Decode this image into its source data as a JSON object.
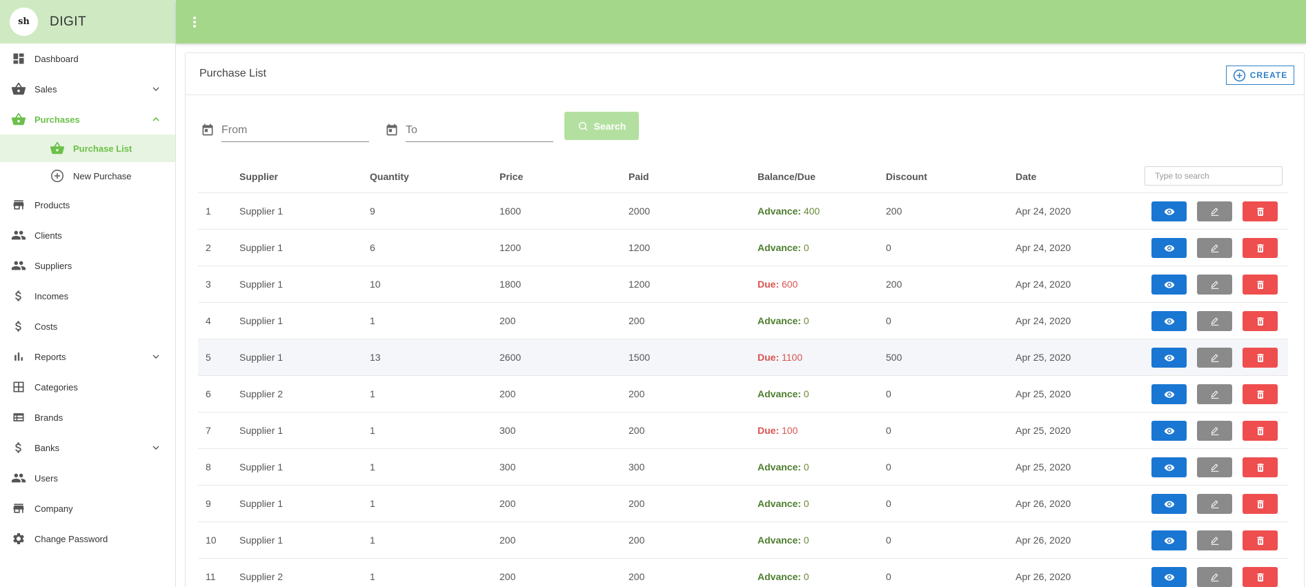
{
  "brand": {
    "logo_text": "sh",
    "name": "DIGIT"
  },
  "sidebar": {
    "items": [
      {
        "label": "Dashboard",
        "icon": "dashboard-icon"
      },
      {
        "label": "Sales",
        "icon": "basket-icon",
        "expandable": true
      },
      {
        "label": "Purchases",
        "icon": "basket-icon",
        "expandable": true,
        "active": true
      },
      {
        "label": "Products",
        "icon": "store-icon"
      },
      {
        "label": "Clients",
        "icon": "people-icon"
      },
      {
        "label": "Suppliers",
        "icon": "people-icon"
      },
      {
        "label": "Incomes",
        "icon": "dollar-icon"
      },
      {
        "label": "Costs",
        "icon": "dollar-icon"
      },
      {
        "label": "Reports",
        "icon": "bar-chart-icon",
        "expandable": true
      },
      {
        "label": "Categories",
        "icon": "grid-icon"
      },
      {
        "label": "Brands",
        "icon": "list-view-icon"
      },
      {
        "label": "Banks",
        "icon": "dollar-icon",
        "expandable": true
      },
      {
        "label": "Users",
        "icon": "people-icon"
      },
      {
        "label": "Company",
        "icon": "store-icon"
      },
      {
        "label": "Change Password",
        "icon": "gear-icon"
      }
    ],
    "purchases_sub": [
      {
        "label": "Purchase List",
        "icon": "basket-icon",
        "current": true
      },
      {
        "label": "New Purchase",
        "icon": "add-circle-icon"
      }
    ]
  },
  "page": {
    "title": "Purchase List",
    "create_label": "CREATE",
    "from_placeholder": "From",
    "to_placeholder": "To",
    "search_label": "Search",
    "table_search_placeholder": "Type to search"
  },
  "table": {
    "headers": {
      "supplier": "Supplier",
      "quantity": "Quantity",
      "price": "Price",
      "paid": "Paid",
      "balance": "Balance/Due",
      "discount": "Discount",
      "date": "Date"
    },
    "rows": [
      {
        "idx": "1",
        "supplier": "Supplier 1",
        "quantity": "9",
        "price": "1600",
        "paid": "2000",
        "bal_type": "adv",
        "bal_label": "Advance:",
        "bal_value": "400",
        "discount": "200",
        "date": "Apr 24, 2020"
      },
      {
        "idx": "2",
        "supplier": "Supplier 1",
        "quantity": "6",
        "price": "1200",
        "paid": "1200",
        "bal_type": "adv",
        "bal_label": "Advance:",
        "bal_value": "0",
        "discount": "0",
        "date": "Apr 24, 2020"
      },
      {
        "idx": "3",
        "supplier": "Supplier 1",
        "quantity": "10",
        "price": "1800",
        "paid": "1200",
        "bal_type": "due",
        "bal_label": "Due:",
        "bal_value": "600",
        "discount": "200",
        "date": "Apr 24, 2020"
      },
      {
        "idx": "4",
        "supplier": "Supplier 1",
        "quantity": "1",
        "price": "200",
        "paid": "200",
        "bal_type": "adv",
        "bal_label": "Advance:",
        "bal_value": "0",
        "discount": "0",
        "date": "Apr 24, 2020"
      },
      {
        "idx": "5",
        "supplier": "Supplier 1",
        "quantity": "13",
        "price": "2600",
        "paid": "1500",
        "bal_type": "due",
        "bal_label": "Due:",
        "bal_value": "1100",
        "discount": "500",
        "date": "Apr 25, 2020",
        "highlight": true
      },
      {
        "idx": "6",
        "supplier": "Supplier 2",
        "quantity": "1",
        "price": "200",
        "paid": "200",
        "bal_type": "adv",
        "bal_label": "Advance:",
        "bal_value": "0",
        "discount": "0",
        "date": "Apr 25, 2020"
      },
      {
        "idx": "7",
        "supplier": "Supplier 1",
        "quantity": "1",
        "price": "300",
        "paid": "200",
        "bal_type": "due",
        "bal_label": "Due:",
        "bal_value": "100",
        "discount": "0",
        "date": "Apr 25, 2020"
      },
      {
        "idx": "8",
        "supplier": "Supplier 1",
        "quantity": "1",
        "price": "300",
        "paid": "300",
        "bal_type": "adv",
        "bal_label": "Advance:",
        "bal_value": "0",
        "discount": "0",
        "date": "Apr 25, 2020"
      },
      {
        "idx": "9",
        "supplier": "Supplier 1",
        "quantity": "1",
        "price": "200",
        "paid": "200",
        "bal_type": "adv",
        "bal_label": "Advance:",
        "bal_value": "0",
        "discount": "0",
        "date": "Apr 26, 2020"
      },
      {
        "idx": "10",
        "supplier": "Supplier 1",
        "quantity": "1",
        "price": "200",
        "paid": "200",
        "bal_type": "adv",
        "bal_label": "Advance:",
        "bal_value": "0",
        "discount": "0",
        "date": "Apr 26, 2020"
      },
      {
        "idx": "11",
        "supplier": "Supplier 2",
        "quantity": "1",
        "price": "200",
        "paid": "200",
        "bal_type": "adv",
        "bal_label": "Advance:",
        "bal_value": "0",
        "discount": "0",
        "date": "Apr 26, 2020"
      }
    ]
  },
  "colors": {
    "topbar": "#a5d78a",
    "brand_bg": "#cfeac3",
    "accent_green": "#6cc04a",
    "view_button": "#1976d2",
    "edit_button": "#8a8a8a",
    "delete_button": "#ef4e4e",
    "create_outline": "#2f80c6"
  }
}
